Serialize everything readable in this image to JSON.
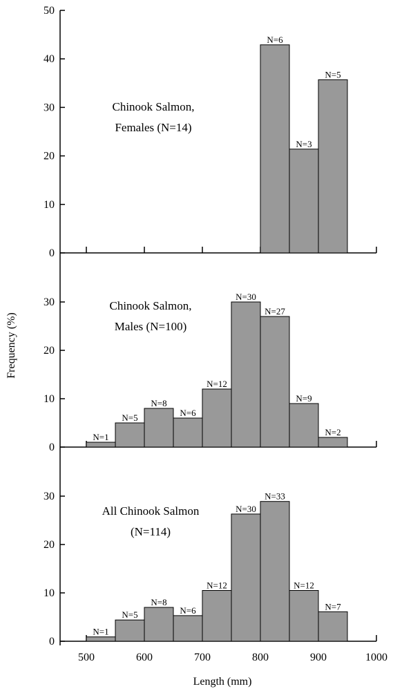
{
  "chart_data": {
    "type": "bar",
    "ylabel": "Frequency (%)",
    "xlabel": "Length (mm)",
    "xlim": [
      450,
      1000
    ],
    "x_ticks": [
      500,
      600,
      700,
      800,
      900,
      1000
    ],
    "bar_color": "#999999",
    "panels": [
      {
        "label_lines": [
          "Chinook Salmon,",
          "Females (N=14)"
        ],
        "ylim": [
          0,
          50
        ],
        "y_ticks": [
          0,
          10,
          20,
          30,
          40,
          50
        ],
        "bins": [
          {
            "x0": 800,
            "x1": 850,
            "value": 42.9,
            "label": "N=6"
          },
          {
            "x0": 850,
            "x1": 900,
            "value": 21.4,
            "label": "N=3"
          },
          {
            "x0": 900,
            "x1": 950,
            "value": 35.7,
            "label": "N=5"
          }
        ]
      },
      {
        "label_lines": [
          "Chinook Salmon,",
          "Males (N=100)"
        ],
        "ylim": [
          0,
          40
        ],
        "y_ticks": [
          0,
          10,
          20,
          30
        ],
        "bins": [
          {
            "x0": 500,
            "x1": 550,
            "value": 1,
            "label": "N=1"
          },
          {
            "x0": 550,
            "x1": 600,
            "value": 5,
            "label": "N=5"
          },
          {
            "x0": 600,
            "x1": 650,
            "value": 8,
            "label": "N=8"
          },
          {
            "x0": 650,
            "x1": 700,
            "value": 6,
            "label": "N=6"
          },
          {
            "x0": 700,
            "x1": 750,
            "value": 12,
            "label": "N=12"
          },
          {
            "x0": 750,
            "x1": 800,
            "value": 30,
            "label": "N=30"
          },
          {
            "x0": 800,
            "x1": 850,
            "value": 27,
            "label": "N=27"
          },
          {
            "x0": 850,
            "x1": 900,
            "value": 9,
            "label": "N=9"
          },
          {
            "x0": 900,
            "x1": 950,
            "value": 2,
            "label": "N=2"
          }
        ]
      },
      {
        "label_lines": [
          "All Chinook Salmon",
          "(N=114)"
        ],
        "ylim": [
          0,
          40
        ],
        "y_ticks": [
          0,
          10,
          20,
          30
        ],
        "bins": [
          {
            "x0": 500,
            "x1": 550,
            "value": 0.9,
            "label": "N=1"
          },
          {
            "x0": 550,
            "x1": 600,
            "value": 4.4,
            "label": "N=5"
          },
          {
            "x0": 600,
            "x1": 650,
            "value": 7.0,
            "label": "N=8"
          },
          {
            "x0": 650,
            "x1": 700,
            "value": 5.3,
            "label": "N=6"
          },
          {
            "x0": 700,
            "x1": 750,
            "value": 10.5,
            "label": "N=12"
          },
          {
            "x0": 750,
            "x1": 800,
            "value": 26.3,
            "label": "N=30"
          },
          {
            "x0": 800,
            "x1": 850,
            "value": 28.9,
            "label": "N=33"
          },
          {
            "x0": 850,
            "x1": 900,
            "value": 10.5,
            "label": "N=12"
          },
          {
            "x0": 900,
            "x1": 950,
            "value": 6.1,
            "label": "N=7"
          }
        ]
      }
    ]
  }
}
